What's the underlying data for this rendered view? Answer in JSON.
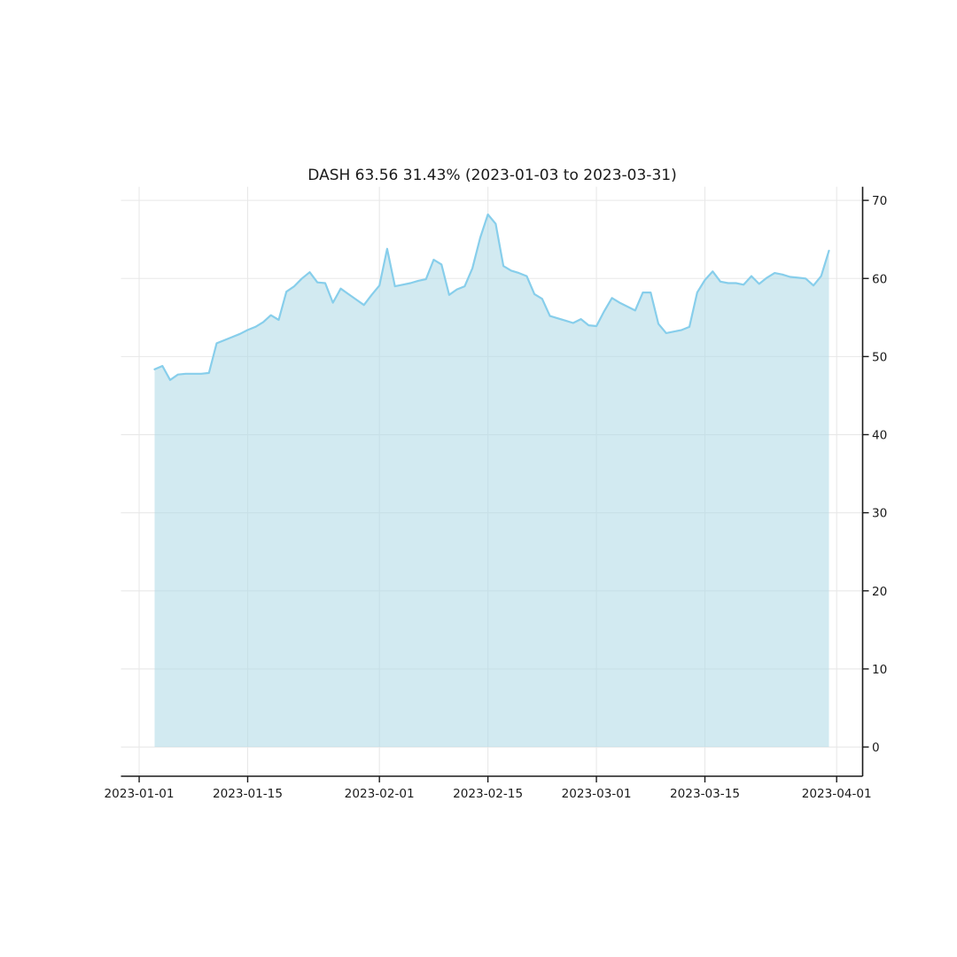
{
  "chart_data": {
    "type": "area",
    "title": "DASH 63.56 31.43% (2023-01-03 to 2023-03-31)",
    "symbol": "DASH",
    "last_price": 63.56,
    "change_pct": "31.43%",
    "period_start": "2023-01-03",
    "period_end": "2023-03-31",
    "legend": "none",
    "grid": true,
    "x_axis": {
      "tick_labels": [
        "2023-01-01",
        "2023-01-15",
        "2023-02-01",
        "2023-02-15",
        "2023-03-01",
        "2023-03-15",
        "2023-04-01"
      ],
      "tick_day_offsets": [
        0,
        14,
        31,
        45,
        59,
        73,
        90
      ],
      "xlim_days": [
        -2.35,
        93.35
      ]
    },
    "y_axis": {
      "side": "right",
      "tick_labels": [
        "0",
        "10",
        "20",
        "30",
        "40",
        "50",
        "60",
        "70"
      ],
      "tick_values": [
        0,
        10,
        20,
        30,
        40,
        50,
        60,
        70
      ],
      "ylim": [
        -3.74,
        71.75
      ]
    },
    "series": [
      {
        "name": "DASH",
        "frequency": "daily",
        "start_day_offset": 2,
        "baseline": 0,
        "values": [
          48.36,
          48.8,
          47.0,
          47.7,
          47.8,
          47.8,
          47.8,
          47.9,
          51.7,
          52.1,
          52.5,
          52.9,
          53.4,
          53.8,
          54.4,
          55.3,
          54.7,
          58.3,
          59.0,
          60.0,
          60.8,
          59.5,
          59.4,
          56.9,
          58.7,
          58.0,
          57.3,
          56.6,
          57.9,
          59.1,
          63.8,
          59.0,
          59.2,
          59.4,
          59.7,
          59.9,
          62.4,
          61.8,
          57.9,
          58.6,
          59.0,
          61.3,
          65.2,
          68.2,
          67.0,
          61.6,
          61.0,
          60.7,
          60.3,
          58.0,
          57.4,
          55.2,
          54.9,
          54.6,
          54.3,
          54.8,
          54.0,
          53.9,
          55.8,
          57.5,
          56.9,
          56.4,
          55.9,
          58.2,
          58.2,
          54.2,
          53.0,
          53.2,
          53.4,
          53.8,
          58.2,
          59.8,
          60.9,
          59.6,
          59.4,
          59.4,
          59.2,
          60.3,
          59.3,
          60.1,
          60.7,
          60.5,
          60.2,
          60.1,
          60.0,
          59.1,
          60.3,
          63.56
        ]
      }
    ],
    "colors": {
      "line": "#87ceeb",
      "fill": "#add8e6",
      "fill_opacity": 0.55,
      "grid": "#e8e8e8",
      "spine": "#1a1a1a",
      "text": "#1a1a1a",
      "background": "#ffffff"
    }
  }
}
